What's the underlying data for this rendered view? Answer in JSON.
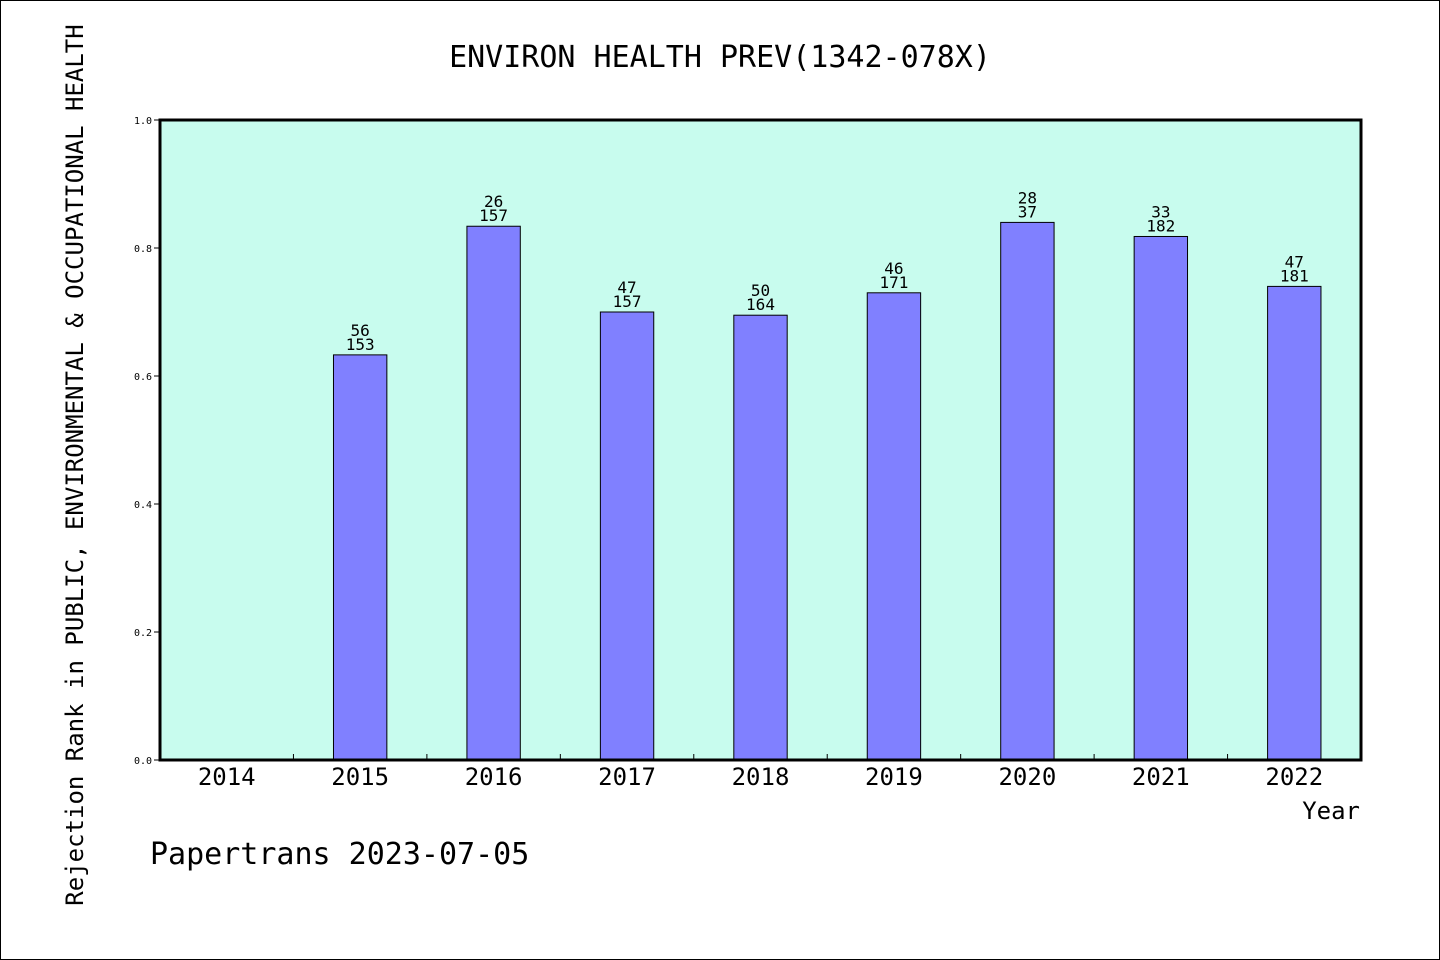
{
  "chart_data": {
    "type": "bar",
    "title": "ENVIRON HEALTH PREV(1342-078X)",
    "xlabel": "Year",
    "ylabel": "Rejection Rank in PUBLIC, ENVIRONMENTAL & OCCUPATIONAL HEALTH",
    "ylim": [
      0,
      1.0
    ],
    "yticks": [
      "0.0",
      "0.2",
      "0.4",
      "0.6",
      "0.8",
      "1.0"
    ],
    "grid": false,
    "colors": {
      "plot_bg": "#c8fcee",
      "bar": "#8080ff"
    },
    "categories": [
      "2014",
      "2015",
      "2016",
      "2017",
      "2018",
      "2019",
      "2020",
      "2021",
      "2022"
    ],
    "values": [
      null,
      0.633,
      0.834,
      0.7,
      0.695,
      0.73,
      0.84,
      0.818,
      0.74
    ],
    "labels_top": [
      "",
      "56",
      "26",
      "47",
      "50",
      "46",
      "28",
      "33",
      "47"
    ],
    "labels_bottom": [
      "",
      "153",
      "157",
      "157",
      "164",
      "171",
      "37",
      "182",
      "181"
    ]
  },
  "footer": "Papertrans 2023-07-05"
}
